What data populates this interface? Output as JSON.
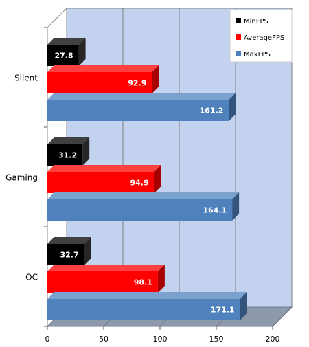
{
  "chart_data": {
    "type": "bar",
    "orientation": "horizontal",
    "categories": [
      "Silent",
      "Gaming",
      "OC"
    ],
    "series": [
      {
        "name": "MinFPS",
        "values": [
          27.8,
          31.2,
          32.7
        ],
        "color": "#000000"
      },
      {
        "name": "AverageFPS",
        "values": [
          92.9,
          94.9,
          98.1
        ],
        "color": "#ff0000"
      },
      {
        "name": "MaxFPS",
        "values": [
          161.2,
          164.1,
          171.1
        ],
        "color": "#4f81bd"
      }
    ],
    "x_ticks": [
      "0",
      "50",
      "100",
      "150",
      "200"
    ],
    "xlim": [
      0,
      200
    ],
    "grid": true,
    "legend_position": "top-right",
    "title": "",
    "xlabel": "",
    "ylabel": "",
    "colors": {
      "plot_back": "#c3d3ef",
      "plot_side": "#ffffff",
      "floor": "#8e9aab"
    }
  }
}
